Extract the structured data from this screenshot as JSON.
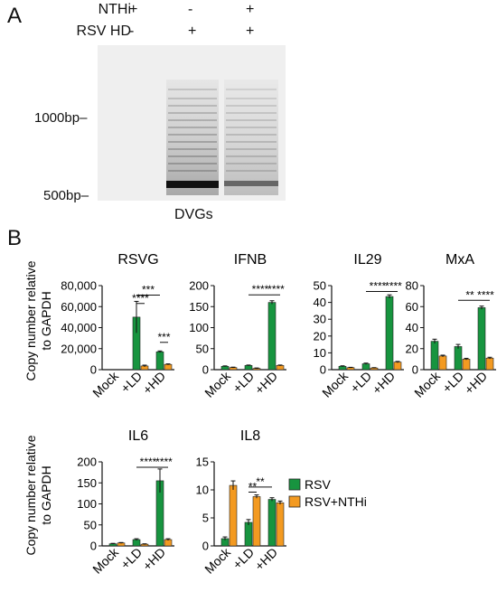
{
  "panel_a": {
    "letter": "A",
    "conditions": [
      {
        "label": "NTHi",
        "marks": [
          "+",
          "-",
          "+"
        ]
      },
      {
        "label": "RSV HD",
        "marks": [
          "-",
          "+",
          "+"
        ]
      }
    ],
    "ladder": [
      "1000bp",
      "500bp"
    ],
    "caption": "DVGs"
  },
  "panel_b": {
    "letter": "B",
    "ylabel_lines": [
      "Copy number relative",
      "to GAPDH"
    ],
    "legend": [
      {
        "label": "RSV",
        "color": "#17943f"
      },
      {
        "label": "RSV+NTHi",
        "color": "#f39a21"
      }
    ],
    "categories": [
      "Mock",
      "+LD",
      "+HD"
    ]
  },
  "chart_data": [
    {
      "type": "bar",
      "title": "RSVG",
      "categories": [
        "Mock",
        "+LD",
        "+HD"
      ],
      "series": [
        {
          "name": "RSV",
          "values": [
            0,
            50000,
            17000
          ],
          "errors": [
            0,
            15000,
            800
          ]
        },
        {
          "name": "RSV+NTHi",
          "values": [
            0,
            3500,
            5000
          ],
          "errors": [
            0,
            800,
            500
          ]
        }
      ],
      "ylim": [
        0,
        80000
      ],
      "yticks": [
        "0",
        "20,000",
        "40,000",
        "60,000",
        "80,000"
      ],
      "sig": [
        {
          "text": "***",
          "x1": 1,
          "s1": 0,
          "x2": 2,
          "s2": 0,
          "y": 71000
        },
        {
          "text": "****",
          "x1": 1,
          "s1": 0,
          "x2": 1,
          "s2": 1,
          "y": 63000
        },
        {
          "text": "***",
          "x1": 2,
          "s1": 0,
          "x2": 2,
          "s2": 1,
          "y": 26000
        }
      ]
    },
    {
      "type": "bar",
      "title": "IFNB",
      "categories": [
        "Mock",
        "+LD",
        "+HD"
      ],
      "series": [
        {
          "name": "RSV",
          "values": [
            8,
            10,
            160
          ],
          "errors": [
            1,
            1,
            4
          ]
        },
        {
          "name": "RSV+NTHi",
          "values": [
            5,
            3,
            10
          ],
          "errors": [
            1,
            1,
            1
          ]
        }
      ],
      "ylim": [
        0,
        200
      ],
      "yticks": [
        "0",
        "50",
        "100",
        "150",
        "200"
      ],
      "sig": [
        {
          "text": "****",
          "x1": 1,
          "s1": 0,
          "x2": 2,
          "s2": 0,
          "y": 178
        },
        {
          "text": "****",
          "x1": 2,
          "s1": 0,
          "x2": 2,
          "s2": 1,
          "y": 178
        }
      ]
    },
    {
      "type": "bar",
      "title": "IL29",
      "categories": [
        "Mock",
        "+LD",
        "+HD"
      ],
      "series": [
        {
          "name": "RSV",
          "values": [
            2,
            3.5,
            43.5
          ],
          "errors": [
            0.3,
            0.4,
            1
          ]
        },
        {
          "name": "RSV+NTHi",
          "values": [
            1.2,
            1,
            4.5
          ],
          "errors": [
            0.2,
            0.2,
            0.4
          ]
        }
      ],
      "ylim": [
        0,
        50
      ],
      "yticks": [
        "0",
        "10",
        "20",
        "30",
        "40",
        "50"
      ],
      "sig": [
        {
          "text": "****",
          "x1": 1,
          "s1": 0,
          "x2": 2,
          "s2": 0,
          "y": 46.5
        },
        {
          "text": "****",
          "x1": 2,
          "s1": 0,
          "x2": 2,
          "s2": 1,
          "y": 46.5
        }
      ]
    },
    {
      "type": "bar",
      "title": "MxA",
      "categories": [
        "Mock",
        "+LD",
        "+HD"
      ],
      "series": [
        {
          "name": "RSV",
          "values": [
            27,
            22,
            59
          ],
          "errors": [
            2,
            2,
            1.5
          ]
        },
        {
          "name": "RSV+NTHi",
          "values": [
            13,
            10,
            11
          ],
          "errors": [
            0.8,
            0.8,
            0.8
          ]
        }
      ],
      "ylim": [
        0,
        80
      ],
      "yticks": [
        "0",
        "20",
        "40",
        "60",
        "80"
      ],
      "sig": [
        {
          "text": "**",
          "x1": 1,
          "s1": 0,
          "x2": 2,
          "s2": 0,
          "y": 66
        },
        {
          "text": "****",
          "x1": 2,
          "s1": 0,
          "x2": 2,
          "s2": 1,
          "y": 66
        }
      ]
    },
    {
      "type": "bar",
      "title": "IL6",
      "categories": [
        "Mock",
        "+LD",
        "+HD"
      ],
      "series": [
        {
          "name": "RSV",
          "values": [
            5,
            15,
            155
          ],
          "errors": [
            1,
            2,
            28
          ]
        },
        {
          "name": "RSV+NTHi",
          "values": [
            7,
            4,
            15
          ],
          "errors": [
            1,
            1,
            2
          ]
        }
      ],
      "ylim": [
        0,
        200
      ],
      "yticks": [
        "0",
        "50",
        "100",
        "150",
        "200"
      ],
      "sig": [
        {
          "text": "****",
          "x1": 1,
          "s1": 0,
          "x2": 2,
          "s2": 0,
          "y": 187
        },
        {
          "text": "****",
          "x1": 2,
          "s1": 0,
          "x2": 2,
          "s2": 1,
          "y": 187
        }
      ]
    },
    {
      "type": "bar",
      "title": "IL8",
      "categories": [
        "Mock",
        "+LD",
        "+HD"
      ],
      "series": [
        {
          "name": "RSV",
          "values": [
            1.3,
            4.2,
            8.3
          ],
          "errors": [
            0.3,
            0.5,
            0.3
          ]
        },
        {
          "name": "RSV+NTHi",
          "values": [
            10.8,
            8.8,
            7.7
          ],
          "errors": [
            0.8,
            0.3,
            0.3
          ]
        }
      ],
      "ylim": [
        0,
        15
      ],
      "yticks": [
        "0",
        "5",
        "10",
        "15"
      ],
      "sig": [
        {
          "text": "**",
          "x1": 1,
          "s1": 0,
          "x2": 2,
          "s2": 0,
          "y": 10.5
        },
        {
          "text": "**",
          "x1": 1,
          "s1": 0,
          "x2": 1,
          "s2": 1,
          "y": 9.6
        }
      ]
    }
  ]
}
